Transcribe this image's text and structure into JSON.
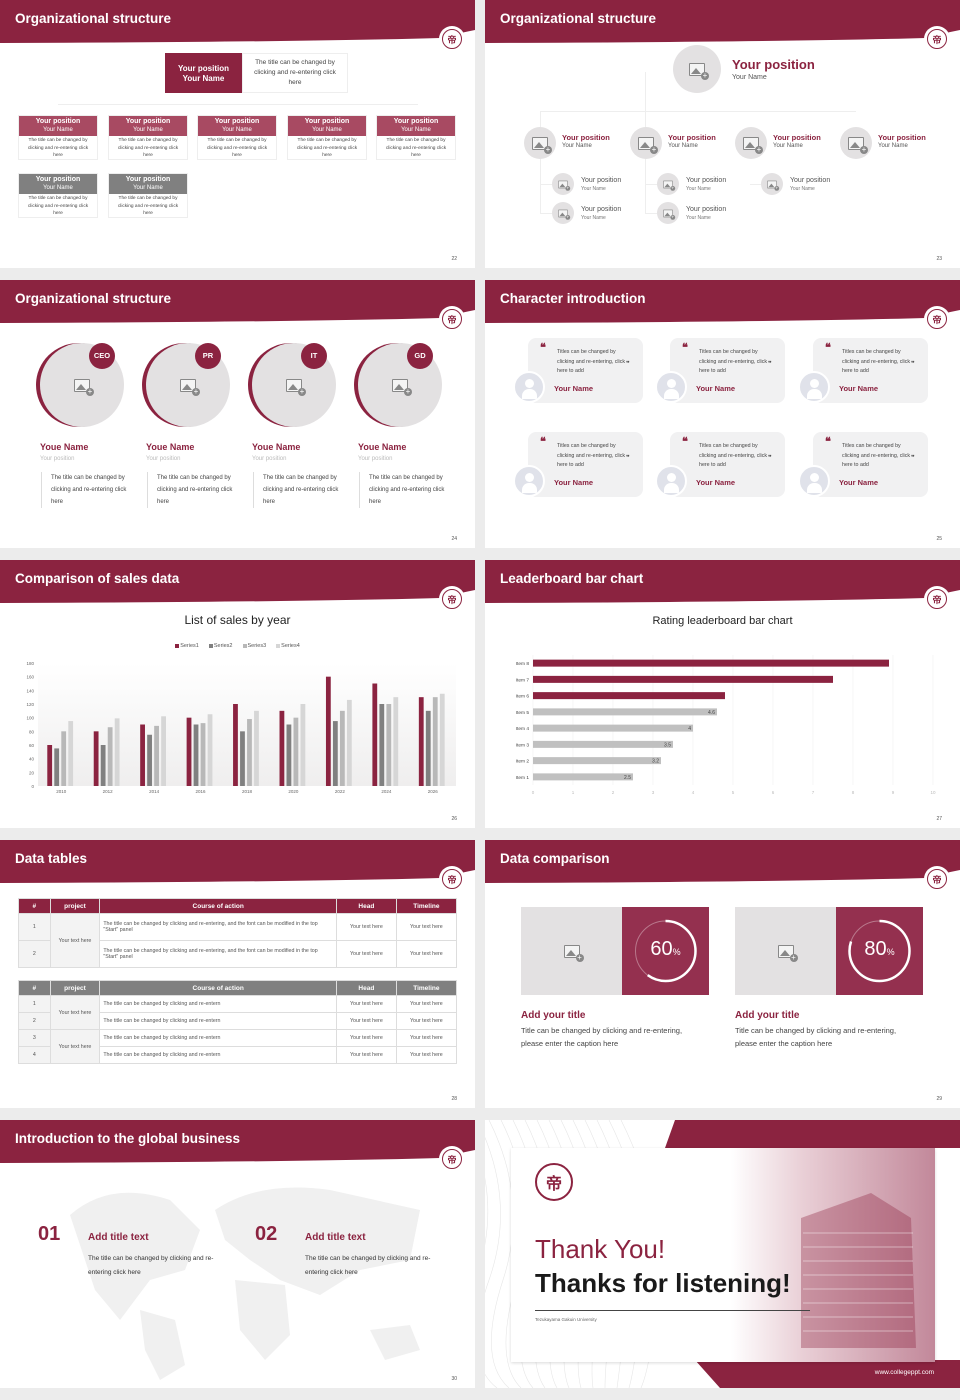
{
  "colors": {
    "accent": "#8b2340",
    "accent_light": "#a84a62",
    "gray": "#808080",
    "light_gray": "#e3e1e2"
  },
  "logo": {
    "glyph": "帝",
    "icon": "university-seal-icon"
  },
  "slides": {
    "s22": {
      "title": "Organizational structure",
      "page": "22",
      "top": {
        "position": "Your position",
        "name": "Your Name",
        "desc": "The title can be changed by clicking and re-entering click here"
      },
      "row1": [
        {
          "position": "Your position",
          "name": "Your Name",
          "desc": "The title can be changed by clicking and re-entering click here"
        },
        {
          "position": "Your position",
          "name": "Your Name",
          "desc": "The title can be changed by clicking and re-entering click here"
        },
        {
          "position": "Your position",
          "name": "Your Name",
          "desc": "The title can be changed by clicking and re-entering click here"
        },
        {
          "position": "Your position",
          "name": "Your Name",
          "desc": "The title can be changed by clicking and re-entering click here"
        },
        {
          "position": "Your position",
          "name": "Your Name",
          "desc": "The title can be changed by clicking and re-entering click here"
        }
      ],
      "row2": [
        {
          "position": "Your position",
          "name": "Your Name",
          "desc": "The title can be changed by clicking and re-entering click here"
        },
        {
          "position": "Your position",
          "name": "Your Name",
          "desc": "The title can be changed by clicking and re-entering click here"
        }
      ]
    },
    "s23": {
      "title": "Organizational structure",
      "page": "23",
      "top": {
        "position": "Your position",
        "name": "Your Name"
      },
      "mid": [
        {
          "position": "Your position",
          "name": "Your Name"
        },
        {
          "position": "Your position",
          "name": "Your Name"
        },
        {
          "position": "Your position",
          "name": "Your Name"
        },
        {
          "position": "Your position",
          "name": "Your Name"
        }
      ],
      "sub": [
        {
          "position": "Your position",
          "name": "Your Name"
        },
        {
          "position": "Your position",
          "name": "Your Name"
        },
        {
          "position": "Your position",
          "name": "Your Name"
        },
        {
          "position": "Your position",
          "name": "Your Name"
        },
        {
          "position": "Your position",
          "name": "Your Name"
        }
      ]
    },
    "s24": {
      "title": "Organizational structure",
      "page": "24",
      "people": [
        {
          "badge": "CEO",
          "name": "Youe Name",
          "position": "Your position",
          "desc": "The title can be changed by clicking and re-entering click here"
        },
        {
          "badge": "PR",
          "name": "Youe Name",
          "position": "Your position",
          "desc": "The title can be changed by clicking and re-entering click here"
        },
        {
          "badge": "IT",
          "name": "Youe Name",
          "position": "Your position",
          "desc": "The title can be changed by clicking and re-entering click here"
        },
        {
          "badge": "GD",
          "name": "Youe Name",
          "position": "Your position",
          "desc": "The title can be changed by clicking and re-entering click here"
        }
      ]
    },
    "s25": {
      "title": "Character introduction",
      "page": "25",
      "open_quote": "❝",
      "close_quote": "❞",
      "cards": [
        {
          "quote": "Titles can be changed by clicking and re-entering, click here to add",
          "name": "Your Name"
        },
        {
          "quote": "Titles can be changed by clicking and re-entering, click here to add",
          "name": "Your Name"
        },
        {
          "quote": "Titles can be changed by clicking and re-entering, click here to add",
          "name": "Your Name"
        },
        {
          "quote": "Titles can be changed by clicking and re-entering, click here to add",
          "name": "Your Name"
        },
        {
          "quote": "Titles can be changed by clicking and re-entering, click here to add",
          "name": "Your Name"
        },
        {
          "quote": "Titles can be changed by clicking and re-entering, click here to add",
          "name": "Your Name"
        }
      ]
    },
    "s26": {
      "title": "Comparison of sales data",
      "page": "26"
    },
    "s27": {
      "title": "Leaderboard bar chart",
      "page": "27"
    },
    "s28": {
      "title": "Data tables",
      "page": "28",
      "headers": [
        "#",
        "project",
        "Course of action",
        "Head",
        "Timeline"
      ],
      "table1": {
        "project": "Your text here",
        "rows": [
          {
            "n": "1",
            "action": "The title can be changed by clicking and re-entering, and the font can be modified in the top \"Start\" panel",
            "head": "Your text here",
            "timeline": "Your text here"
          },
          {
            "n": "2",
            "action": "The title can be changed by clicking and re-entering, and the font can be modified in the top \"Start\" panel",
            "head": "Your text here",
            "timeline": "Your text here"
          }
        ]
      },
      "table2": {
        "projects": [
          "Your text here",
          "Your text here"
        ],
        "rows": [
          {
            "n": "1",
            "action": "The title can be changed by clicking and re-entern",
            "head": "Your text here",
            "timeline": "Your text here"
          },
          {
            "n": "2",
            "action": "The title can be changed by clicking and re-entern",
            "head": "Your text here",
            "timeline": "Your text here"
          },
          {
            "n": "3",
            "action": "The title can be changed by clicking and re-entern",
            "head": "Your text here",
            "timeline": "Your text here"
          },
          {
            "n": "4",
            "action": "The title can be changed by clicking and re-entern",
            "head": "Your text here",
            "timeline": "Your text here"
          }
        ]
      }
    },
    "s29": {
      "title": "Data comparison",
      "page": "29",
      "items": [
        {
          "percent": 60,
          "value": "60",
          "unit": "%",
          "title": "Add your title",
          "text": "Title can be changed by clicking and re-entering, please enter the caption here"
        },
        {
          "percent": 80,
          "value": "80",
          "unit": "%",
          "title": "Add your title",
          "text": "Title can be changed by clicking and re-entering, please enter the caption here"
        }
      ]
    },
    "s30": {
      "title": "Introduction to the global business",
      "page": "30",
      "items": [
        {
          "num": "01",
          "title": "Add title text",
          "text": "The title can be changed by clicking and re-entering click here"
        },
        {
          "num": "02",
          "title": "Add title text",
          "text": "The title can be changed by clicking and re-entering click here"
        }
      ]
    },
    "s31": {
      "thank": "Thank You!",
      "thanks": "Thanks for listening!",
      "university": "Tezukayama Gakuin University",
      "url": "www.collegeppt.com"
    }
  },
  "chart_data": [
    {
      "type": "bar",
      "title": "List of sales by year",
      "categories": [
        "2010",
        "2012",
        "2014",
        "2016",
        "2018",
        "2020",
        "2022",
        "2024",
        "2026"
      ],
      "series": [
        {
          "name": "Series1",
          "color": "#8b2340",
          "values": [
            60,
            80,
            90,
            100,
            120,
            110,
            160,
            150,
            130
          ]
        },
        {
          "name": "Series2",
          "color": "#808080",
          "values": [
            55,
            60,
            75,
            90,
            80,
            90,
            95,
            120,
            110
          ]
        },
        {
          "name": "Series3",
          "color": "#b8b8b8",
          "values": [
            80,
            86,
            88,
            92,
            98,
            100,
            110,
            120,
            130
          ]
        },
        {
          "name": "Series4",
          "color": "#d6d6d6",
          "values": [
            95,
            99,
            102,
            105,
            110,
            120,
            126,
            130,
            135
          ]
        }
      ],
      "ylim": [
        0,
        180
      ],
      "yticks": [
        0,
        20,
        40,
        60,
        80,
        100,
        120,
        140,
        160,
        180
      ],
      "legend": "top",
      "grid": false
    },
    {
      "type": "bar",
      "orientation": "horizontal",
      "title": "Rating leaderboard bar chart",
      "categories": [
        "Item 1",
        "Item 2",
        "Item 3",
        "Item 4",
        "Item 5",
        "Item 6",
        "Item 7",
        "Item 8"
      ],
      "values": [
        2.5,
        3.2,
        3.5,
        4,
        4.6,
        4.8,
        7.5,
        8.9
      ],
      "labels": [
        "2.5",
        "3.2",
        "3.5",
        "4",
        "4.6",
        "",
        "",
        ""
      ],
      "colors": [
        "#c0c0c0",
        "#c0c0c0",
        "#c0c0c0",
        "#c0c0c0",
        "#c0c0c0",
        "#8b2340",
        "#8b2340",
        "#8b2340"
      ],
      "xlim": [
        0,
        10
      ],
      "xticks": [
        "0",
        "1",
        "2",
        "3",
        "4",
        "5",
        "6",
        "7",
        "8",
        "9",
        "10"
      ],
      "grid": true
    }
  ]
}
